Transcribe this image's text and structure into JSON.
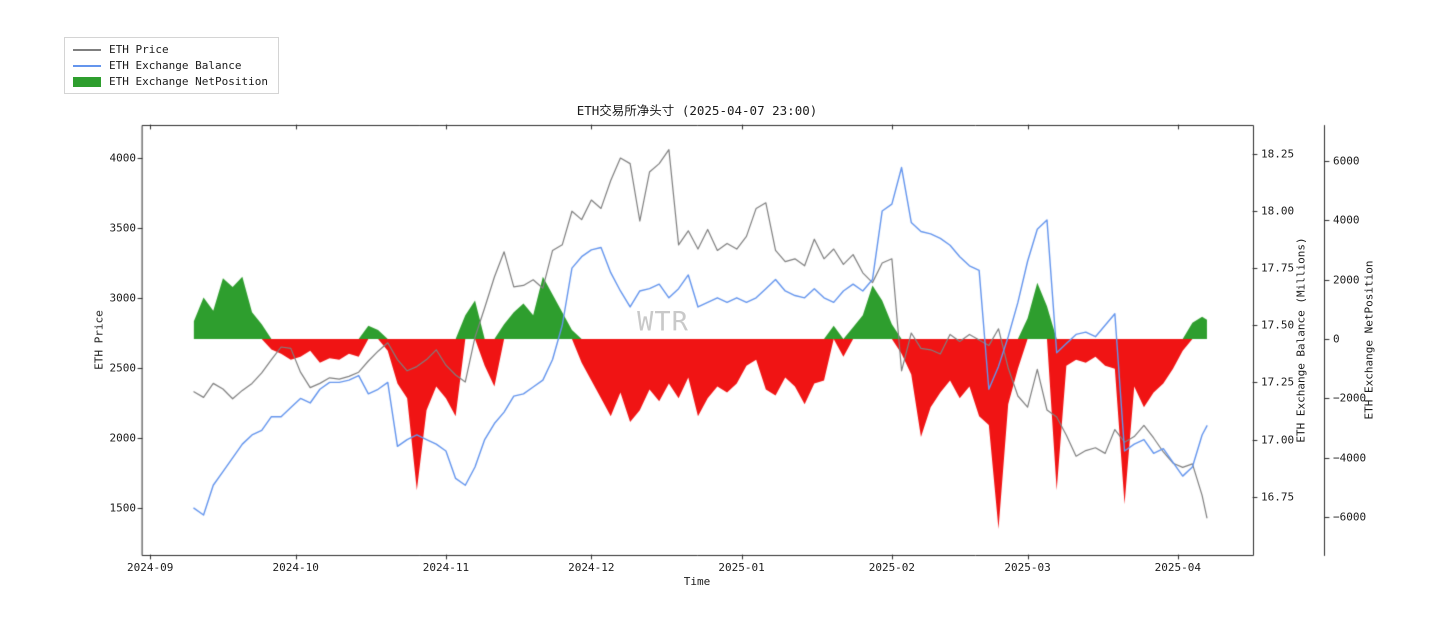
{
  "title": "ETH交易所净头寸 (2025-04-07 23:00)",
  "watermark": "WTR",
  "legend": {
    "items": [
      {
        "label": "ETH Price",
        "type": "line",
        "color": "#7f7f7f"
      },
      {
        "label": "ETH Exchange Balance",
        "type": "line",
        "color": "#6495ed"
      },
      {
        "label": "ETH Exchange NetPosition",
        "type": "patch",
        "color": "#2e9e2e"
      }
    ]
  },
  "colors": {
    "price_line": "#7f7f7f",
    "balance_line": "#6495ed",
    "net_positive": "#2e9e2e",
    "net_negative": "#f01414",
    "spine": "#2b2b2b",
    "watermark": "#c9c9c9"
  },
  "chart_data": {
    "type": "line",
    "title": "ETH交易所净头寸 (2025-04-07 23:00)",
    "x_axis": {
      "label": "Time",
      "unit": "days since 2024-09-01",
      "range_days": [
        -1.7,
        227.5
      ],
      "tick_days": [
        0,
        30,
        61,
        91,
        122,
        153,
        181,
        212
      ],
      "tick_labels": [
        "2024-09",
        "2024-10",
        "2024-11",
        "2024-12",
        "2025-01",
        "2025-02",
        "2025-03",
        "2025-04"
      ]
    },
    "y_axes": {
      "price": {
        "label": "ETH Price",
        "ticks": [
          4000,
          3500,
          3000,
          2500,
          2000,
          1500
        ],
        "range": [
          1164,
          4236
        ]
      },
      "balance": {
        "label": "ETH Exchange Balance (Millions)",
        "ticks": [
          18.25,
          18.0,
          17.75,
          17.5,
          17.25,
          17.0,
          16.75
        ],
        "range": [
          16.495,
          18.376
        ]
      },
      "net": {
        "label": "ETH Exchange NetPosition",
        "ticks": [
          6000,
          4000,
          2000,
          0,
          -2000,
          -4000,
          -6000
        ],
        "range": [
          -7280,
          7213
        ]
      }
    },
    "legend_position": "upper left (outside axes)",
    "grid": false,
    "days": [
      9,
      11,
      13,
      15,
      17,
      19,
      21,
      23,
      25,
      27,
      29,
      31,
      33,
      35,
      37,
      39,
      41,
      43,
      45,
      47,
      49,
      51,
      53,
      55,
      57,
      59,
      61,
      63,
      65,
      67,
      69,
      71,
      73,
      75,
      77,
      79,
      81,
      83,
      85,
      87,
      89,
      91,
      93,
      95,
      97,
      99,
      101,
      103,
      105,
      107,
      109,
      111,
      113,
      115,
      117,
      119,
      121,
      123,
      125,
      127,
      129,
      131,
      133,
      135,
      137,
      139,
      141,
      143,
      145,
      147,
      149,
      151,
      153,
      155,
      157,
      159,
      161,
      163,
      165,
      167,
      169,
      171,
      173,
      175,
      177,
      179,
      181,
      183,
      185,
      187,
      189,
      191,
      193,
      195,
      197,
      199,
      201,
      203,
      205,
      207,
      209,
      211,
      213,
      215,
      217,
      218
    ],
    "series": [
      {
        "name": "ETH Price",
        "axis": "price",
        "style": "line",
        "color": "#7f7f7f",
        "values": [
          2330,
          2290,
          2390,
          2350,
          2280,
          2340,
          2390,
          2465,
          2560,
          2650,
          2640,
          2470,
          2360,
          2390,
          2430,
          2420,
          2440,
          2470,
          2550,
          2620,
          2680,
          2560,
          2480,
          2510,
          2560,
          2630,
          2520,
          2450,
          2400,
          2720,
          2930,
          3150,
          3330,
          3080,
          3090,
          3130,
          3070,
          3340,
          3380,
          3620,
          3560,
          3700,
          3640,
          3840,
          4000,
          3960,
          3550,
          3900,
          3960,
          4060,
          3380,
          3480,
          3350,
          3490,
          3340,
          3390,
          3350,
          3440,
          3640,
          3680,
          3340,
          3260,
          3280,
          3230,
          3420,
          3280,
          3350,
          3240,
          3310,
          3180,
          3110,
          3250,
          3280,
          2480,
          2750,
          2640,
          2630,
          2600,
          2740,
          2690,
          2740,
          2700,
          2660,
          2780,
          2500,
          2300,
          2220,
          2490,
          2200,
          2150,
          2020,
          1870,
          1910,
          1930,
          1890,
          2060,
          1970,
          2010,
          2090,
          2000,
          1900,
          1820,
          1790,
          1815,
          1590,
          1430
        ]
      },
      {
        "name": "ETH Exchange Balance",
        "axis": "balance",
        "style": "line",
        "color": "#6495ed",
        "values": [
          16.7,
          16.67,
          16.8,
          16.86,
          16.92,
          16.98,
          17.02,
          17.04,
          17.1,
          17.1,
          17.14,
          17.18,
          17.16,
          17.22,
          17.25,
          17.25,
          17.26,
          17.28,
          17.2,
          17.22,
          17.25,
          16.97,
          17.0,
          17.02,
          17.0,
          16.98,
          16.95,
          16.83,
          16.8,
          16.88,
          17.0,
          17.07,
          17.12,
          17.19,
          17.2,
          17.23,
          17.26,
          17.35,
          17.5,
          17.75,
          17.8,
          17.83,
          17.84,
          17.73,
          17.65,
          17.58,
          17.65,
          17.66,
          17.68,
          17.62,
          17.66,
          17.72,
          17.58,
          17.6,
          17.62,
          17.6,
          17.62,
          17.6,
          17.62,
          17.66,
          17.7,
          17.65,
          17.63,
          17.62,
          17.66,
          17.62,
          17.6,
          17.65,
          17.68,
          17.65,
          17.7,
          18.0,
          18.03,
          18.19,
          17.95,
          17.91,
          17.9,
          17.88,
          17.85,
          17.8,
          17.76,
          17.74,
          17.22,
          17.32,
          17.45,
          17.6,
          17.78,
          17.92,
          17.96,
          17.38,
          17.42,
          17.46,
          17.47,
          17.45,
          17.5,
          17.55,
          16.95,
          16.98,
          17.0,
          16.94,
          16.96,
          16.9,
          16.84,
          16.88,
          17.02,
          17.06
        ]
      },
      {
        "name": "ETH Exchange NetPosition",
        "axis": "net",
        "style": "area",
        "positive_color": "#2e9e2e",
        "negative_color": "#f01414",
        "values": [
          600,
          1400,
          950,
          2050,
          1750,
          2100,
          900,
          500,
          -350,
          -500,
          -700,
          -600,
          -400,
          -800,
          -650,
          -700,
          -500,
          -600,
          450,
          300,
          -400,
          -1500,
          -2000,
          -5100,
          -2400,
          -1600,
          -2000,
          -2600,
          800,
          1300,
          -900,
          -1600,
          500,
          900,
          1200,
          800,
          2100,
          1500,
          900,
          300,
          -800,
          -1400,
          -2000,
          -2600,
          -1800,
          -2800,
          -2400,
          -1700,
          -2100,
          -1500,
          -2000,
          -1300,
          -2600,
          -2000,
          -1600,
          -1800,
          -1500,
          -900,
          -700,
          -1700,
          -1900,
          -1300,
          -1600,
          -2200,
          -1500,
          -1400,
          450,
          -600,
          400,
          800,
          1800,
          1300,
          500,
          -500,
          -1200,
          -3300,
          -2300,
          -1800,
          -1400,
          -2000,
          -1600,
          -2600,
          -2900,
          -6400,
          -2200,
          -1000,
          700,
          1900,
          1100,
          -5100,
          -900,
          -700,
          -800,
          -600,
          -900,
          -1000,
          -5570,
          -1600,
          -2300,
          -1800,
          -1500,
          -1000,
          -400,
          550,
          750,
          650
        ]
      }
    ]
  }
}
